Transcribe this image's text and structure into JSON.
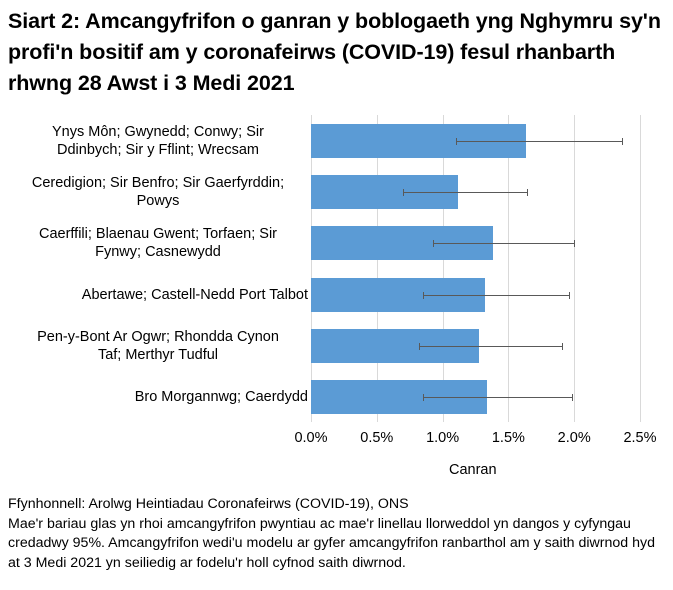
{
  "title": "Siart 2: Amcangyfrifon o ganran y boblogaeth yng Nghymru sy'n profi'n bositif am y coronafeirws (COVID-19) fesul rhanbarth rhwng 28 Awst i 3 Medi 2021",
  "chart_data": {
    "type": "bar",
    "orientation": "horizontal",
    "title": "Siart 2: Amcangyfrifon o ganran y boblogaeth yng Nghymru sy'n profi'n bositif am y coronafeirws (COVID-19) fesul rhanbarth rhwng 28 Awst i 3 Medi 2021",
    "categories": [
      "Ynys Môn; Gwynedd; Conwy; Sir Ddinbych; Sir y Fflint; Wrecsam",
      "Ceredigion; Sir Benfro; Sir Gaerfyrddin; Powys",
      "Caerffili; Blaenau Gwent; Torfaen; Sir Fynwy; Casnewydd",
      "Abertawe; Castell-Nedd Port Talbot",
      "Pen-y-Bont Ar Ogwr; Rhondda Cynon Taf; Merthyr Tudful",
      "Bro Morgannwg; Caerdydd"
    ],
    "values": [
      1.63,
      1.12,
      1.38,
      1.32,
      1.28,
      1.34
    ],
    "lower_ci": [
      1.1,
      0.7,
      0.93,
      0.85,
      0.82,
      0.85
    ],
    "upper_ci": [
      2.36,
      1.64,
      2.0,
      1.96,
      1.91,
      1.98
    ],
    "xlabel": "Canran",
    "ylabel": "",
    "xlim": [
      0,
      2.5
    ],
    "xticks": [
      "0.0%",
      "0.5%",
      "1.0%",
      "1.5%",
      "2.0%",
      "2.5%"
    ],
    "grid": true,
    "legend": null,
    "bar_color": "#5b9bd5",
    "error_bar_color": "#595959"
  },
  "categories_display": [
    [
      "Ynys Môn; Gwynedd; Conwy; Sir",
      "Ddinbych; Sir y Fflint; Wrecsam"
    ],
    [
      "Ceredigion; Sir Benfro; Sir Gaerfyrddin;",
      "Powys"
    ],
    [
      "Caerffili; Blaenau Gwent; Torfaen; Sir",
      "Fynwy; Casnewydd"
    ],
    [
      "Abertawe; Castell-Nedd Port Talbot"
    ],
    [
      "Pen-y-Bont Ar Ogwr; Rhondda Cynon",
      "Taf; Merthyr Tudful"
    ],
    [
      "Bro Morgannwg; Caerdydd"
    ]
  ],
  "footer": {
    "source": "Ffynhonnell: Arolwg Heintiadau Coronafeirws (COVID-19), ONS",
    "note": "Mae'r bariau glas yn rhoi amcangyfrifon pwyntiau ac mae'r linellau llorweddol yn dangos y cyfyngau credadwy 95%. Amcangyfrifon wedi'u modelu ar gyfer amcangyfrifon ranbarthol am y saith diwrnod hyd at 3 Medi 2021 yn seiliedig ar fodelu'r holl cyfnod saith diwrnod."
  }
}
